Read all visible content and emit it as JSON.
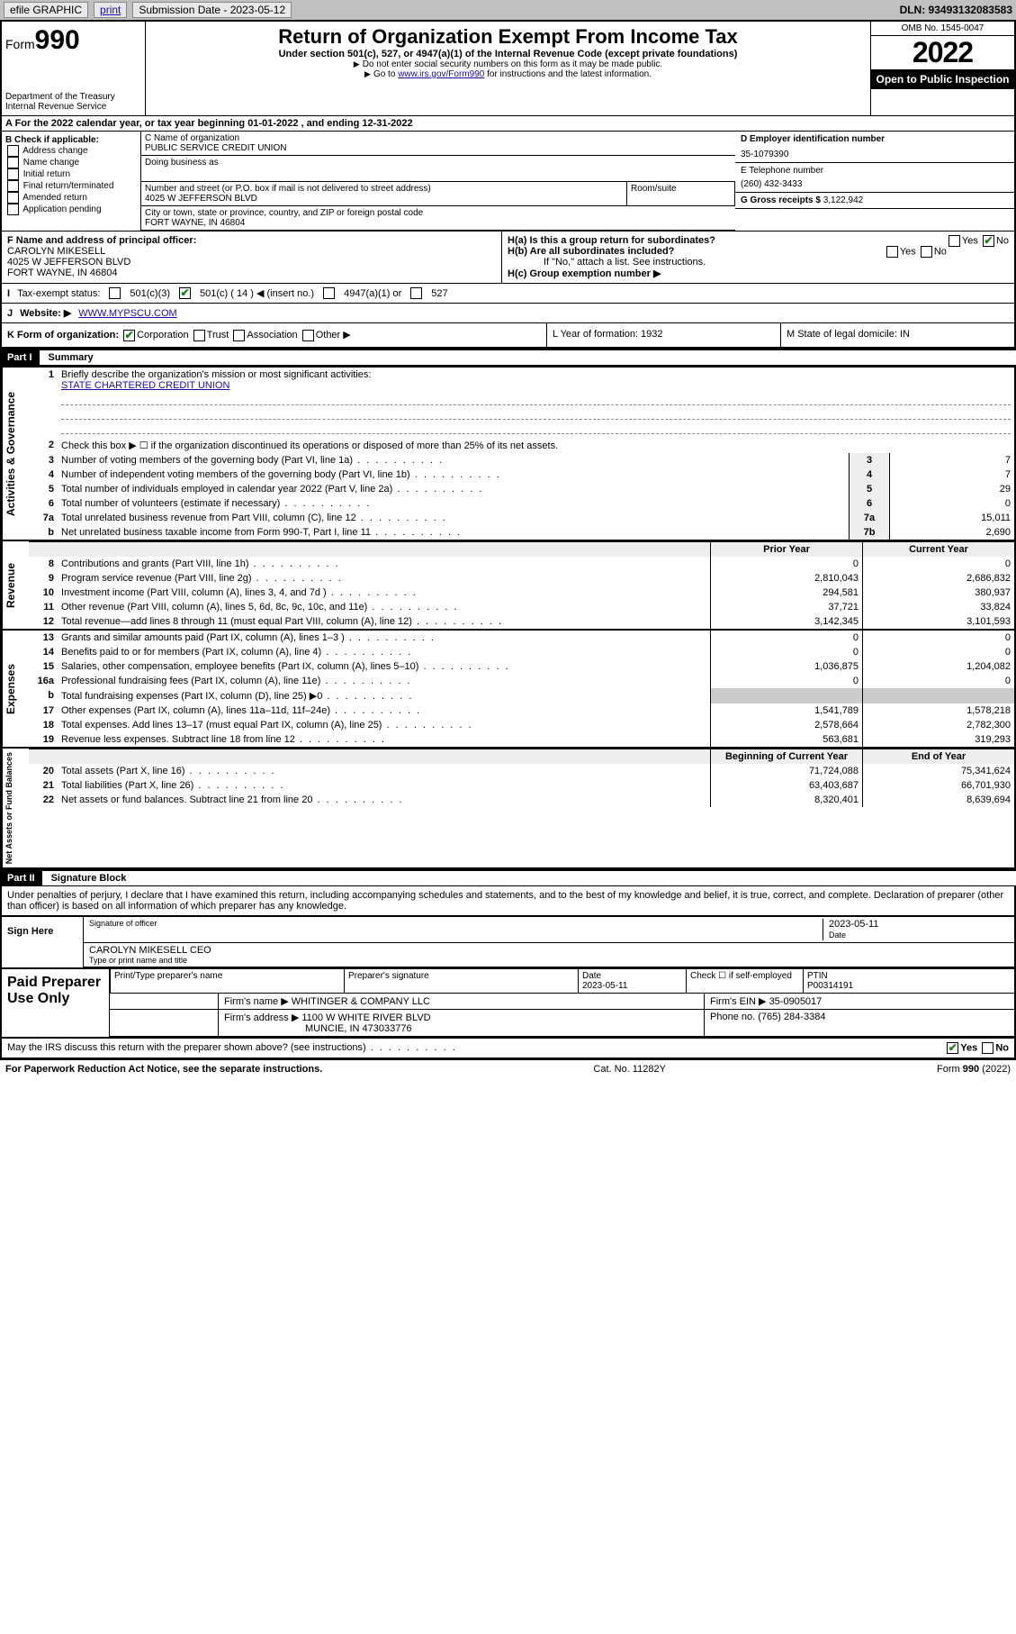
{
  "colors": {
    "topbar_bg": "#c0c0c0",
    "link": "#1a0dab",
    "black": "#000000",
    "shade": "#eeeeee",
    "check": "#1a7f1a"
  },
  "topbar": {
    "efile": "efile GRAPHIC",
    "print": "print",
    "submission_label": "Submission Date - 2023-05-12",
    "dln": "DLN: 93493132083583"
  },
  "header": {
    "form_word": "Form",
    "form_no": "990",
    "dept": "Department of the Treasury",
    "irs": "Internal Revenue Service",
    "title": "Return of Organization Exempt From Income Tax",
    "sub": "Under section 501(c), 527, or 4947(a)(1) of the Internal Revenue Code (except private foundations)",
    "note1": "Do not enter social security numbers on this form as it may be made public.",
    "note2_pre": "Go to ",
    "note2_link": "www.irs.gov/Form990",
    "note2_post": " for instructions and the latest information.",
    "omb": "OMB No. 1545-0047",
    "year": "2022",
    "open": "Open to Public Inspection"
  },
  "rowA": "A For the 2022 calendar year, or tax year beginning 01-01-2022   , and ending 12-31-2022",
  "B": {
    "label": "B Check if applicable:",
    "opts": [
      "Address change",
      "Name change",
      "Initial return",
      "Final return/terminated",
      "Amended return",
      "Application pending"
    ]
  },
  "C": {
    "name_label": "C Name of organization",
    "name": "PUBLIC SERVICE CREDIT UNION",
    "dba_label": "Doing business as",
    "street_label": "Number and street (or P.O. box if mail is not delivered to street address)",
    "room_label": "Room/suite",
    "street": "4025 W JEFFERSON BLVD",
    "city_label": "City or town, state or province, country, and ZIP or foreign postal code",
    "city": "FORT WAYNE, IN  46804"
  },
  "D": {
    "label": "D Employer identification number",
    "value": "35-1079390"
  },
  "E": {
    "label": "E Telephone number",
    "value": "(260) 432-3433"
  },
  "G": {
    "label": "G Gross receipts $",
    "value": "3,122,942"
  },
  "F": {
    "label": "F  Name and address of principal officer:",
    "name": "CAROLYN MIKESELL",
    "addr1": "4025 W JEFFERSON BLVD",
    "addr2": "FORT WAYNE, IN  46804"
  },
  "H": {
    "a": "H(a)  Is this a group return for subordinates?",
    "b": "H(b)  Are all subordinates included?",
    "b_note": "If \"No,\" attach a list. See instructions.",
    "c": "H(c)  Group exemption number ▶",
    "yes": "Yes",
    "no": "No"
  },
  "I": {
    "label": "Tax-exempt status:",
    "c3": "501(c)(3)",
    "c": "501(c) ( 14 ) ◀ (insert no.)",
    "a1": "4947(a)(1) or",
    "s527": "527"
  },
  "J": {
    "label": "Website: ▶",
    "value": "WWW.MYPSCU.COM"
  },
  "K": {
    "label": "K Form of organization:",
    "corp": "Corporation",
    "trust": "Trust",
    "assoc": "Association",
    "other": "Other ▶",
    "L": "L Year of formation: 1932",
    "M": "M State of legal domicile: IN"
  },
  "partI": {
    "head": "Part I",
    "label": "Summary",
    "l1_label": "Briefly describe the organization's mission or most significant activities:",
    "l1_value": "STATE CHARTERED CREDIT UNION",
    "l2": "Check this box ▶ ☐  if the organization discontinued its operations or disposed of more than 25% of its net assets.",
    "rows_simple": [
      {
        "n": "3",
        "t": "Number of voting members of the governing body (Part VI, line 1a)",
        "box": "3",
        "v": "7"
      },
      {
        "n": "4",
        "t": "Number of independent voting members of the governing body (Part VI, line 1b)",
        "box": "4",
        "v": "7"
      },
      {
        "n": "5",
        "t": "Total number of individuals employed in calendar year 2022 (Part V, line 2a)",
        "box": "5",
        "v": "29"
      },
      {
        "n": "6",
        "t": "Total number of volunteers (estimate if necessary)",
        "box": "6",
        "v": "0"
      },
      {
        "n": "7a",
        "t": "Total unrelated business revenue from Part VIII, column (C), line 12",
        "box": "7a",
        "v": "15,011"
      },
      {
        "n": "b",
        "t": "Net unrelated business taxable income from Form 990-T, Part I, line 11",
        "box": "7b",
        "v": "2,690"
      }
    ],
    "hdr_prior": "Prior Year",
    "hdr_curr": "Current Year",
    "rev": [
      {
        "n": "8",
        "t": "Contributions and grants (Part VIII, line 1h)",
        "p": "0",
        "c": "0"
      },
      {
        "n": "9",
        "t": "Program service revenue (Part VIII, line 2g)",
        "p": "2,810,043",
        "c": "2,686,832"
      },
      {
        "n": "10",
        "t": "Investment income (Part VIII, column (A), lines 3, 4, and 7d )",
        "p": "294,581",
        "c": "380,937"
      },
      {
        "n": "11",
        "t": "Other revenue (Part VIII, column (A), lines 5, 6d, 8c, 9c, 10c, and 11e)",
        "p": "37,721",
        "c": "33,824"
      },
      {
        "n": "12",
        "t": "Total revenue—add lines 8 through 11 (must equal Part VIII, column (A), line 12)",
        "p": "3,142,345",
        "c": "3,101,593"
      }
    ],
    "exp": [
      {
        "n": "13",
        "t": "Grants and similar amounts paid (Part IX, column (A), lines 1–3 )",
        "p": "0",
        "c": "0"
      },
      {
        "n": "14",
        "t": "Benefits paid to or for members (Part IX, column (A), line 4)",
        "p": "0",
        "c": "0"
      },
      {
        "n": "15",
        "t": "Salaries, other compensation, employee benefits (Part IX, column (A), lines 5–10)",
        "p": "1,036,875",
        "c": "1,204,082"
      },
      {
        "n": "16a",
        "t": "Professional fundraising fees (Part IX, column (A), line 11e)",
        "p": "0",
        "c": "0"
      },
      {
        "n": "b",
        "t": "Total fundraising expenses (Part IX, column (D), line 25) ▶0",
        "p": "",
        "c": "",
        "shade": true
      },
      {
        "n": "17",
        "t": "Other expenses (Part IX, column (A), lines 11a–11d, 11f–24e)",
        "p": "1,541,789",
        "c": "1,578,218"
      },
      {
        "n": "18",
        "t": "Total expenses. Add lines 13–17 (must equal Part IX, column (A), line 25)",
        "p": "2,578,664",
        "c": "2,782,300"
      },
      {
        "n": "19",
        "t": "Revenue less expenses. Subtract line 18 from line 12",
        "p": "563,681",
        "c": "319,293"
      }
    ],
    "hdr_begin": "Beginning of Current Year",
    "hdr_end": "End of Year",
    "net": [
      {
        "n": "20",
        "t": "Total assets (Part X, line 16)",
        "p": "71,724,088",
        "c": "75,341,624"
      },
      {
        "n": "21",
        "t": "Total liabilities (Part X, line 26)",
        "p": "63,403,687",
        "c": "66,701,930"
      },
      {
        "n": "22",
        "t": "Net assets or fund balances. Subtract line 21 from line 20",
        "p": "8,320,401",
        "c": "8,639,694"
      }
    ],
    "side": {
      "gov": "Activities & Governance",
      "rev": "Revenue",
      "exp": "Expenses",
      "net": "Net Assets or Fund Balances"
    }
  },
  "partII": {
    "head": "Part II",
    "label": "Signature Block",
    "perjury": "Under penalties of perjury, I declare that I have examined this return, including accompanying schedules and statements, and to the best of my knowledge and belief, it is true, correct, and complete. Declaration of preparer (other than officer) is based on all information of which preparer has any knowledge.",
    "sign_here": "Sign Here",
    "sig_officer": "Signature of officer",
    "sig_date": "2023-05-11",
    "date_label": "Date",
    "name_title": "CAROLYN MIKESELL CEO",
    "name_title_label": "Type or print name and title"
  },
  "paid": {
    "label": "Paid Preparer Use Only",
    "h1": "Print/Type preparer's name",
    "h2": "Preparer's signature",
    "h3": "Date",
    "h3v": "2023-05-11",
    "h4": "Check ☐ if self-employed",
    "h5": "PTIN",
    "h5v": "P00314191",
    "firm_name_l": "Firm's name    ▶",
    "firm_name": "WHITINGER & COMPANY LLC",
    "firm_ein_l": "Firm's EIN ▶",
    "firm_ein": "35-0905017",
    "firm_addr_l": "Firm's address ▶",
    "firm_addr": "1100 W WHITE RIVER BLVD",
    "firm_city": "MUNCIE, IN  473033776",
    "phone_l": "Phone no.",
    "phone": "(765) 284-3384"
  },
  "may": {
    "text": "May the IRS discuss this return with the preparer shown above? (see instructions)",
    "yes": "Yes",
    "no": "No"
  },
  "footer": {
    "left": "For Paperwork Reduction Act Notice, see the separate instructions.",
    "mid": "Cat. No. 11282Y",
    "right": "Form 990 (2022)"
  }
}
